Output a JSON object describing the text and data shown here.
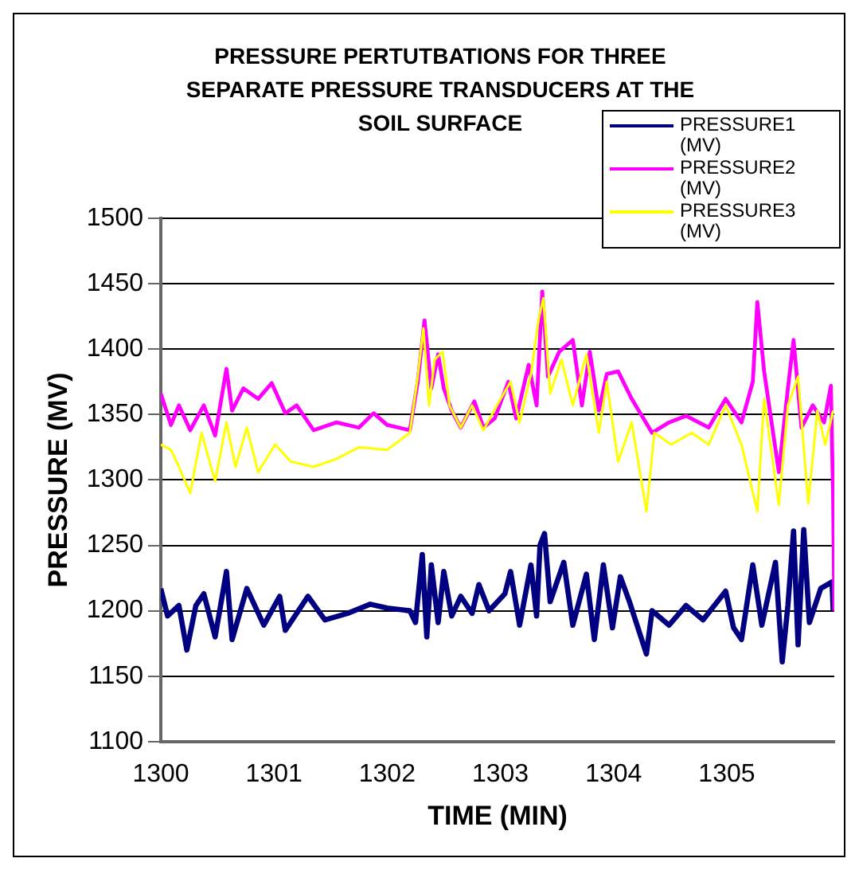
{
  "chart_data": {
    "type": "line",
    "title": "PRESSURE PERTUTBATIONS FOR THREE SEPARATE PRESSURE TRANSDUCERS AT THE SOIL SURFACE",
    "xlabel": "TIME (MIN)",
    "ylabel": "PRESSURE (MV)",
    "xlim": [
      1300,
      1305.95
    ],
    "xticks": [
      1300,
      1301,
      1302,
      1303,
      1304,
      1305
    ],
    "ylim": [
      1100,
      1500
    ],
    "yticks": [
      1100,
      1150,
      1200,
      1250,
      1300,
      1350,
      1400,
      1450,
      1500
    ],
    "grid": "y",
    "legend": "top right",
    "series": [
      {
        "name": "PRESSURE1 (MV)",
        "color": "#000080",
        "x": [
          1300.0,
          1300.06,
          1300.16,
          1300.23,
          1300.31,
          1300.38,
          1300.48,
          1300.58,
          1300.63,
          1300.76,
          1300.91,
          1301.05,
          1301.1,
          1301.3,
          1301.45,
          1301.65,
          1301.85,
          1302.0,
          1302.2,
          1302.25,
          1302.31,
          1302.35,
          1302.39,
          1302.45,
          1302.5,
          1302.57,
          1302.65,
          1302.75,
          1302.81,
          1302.9,
          1303.04,
          1303.09,
          1303.17,
          1303.27,
          1303.32,
          1303.35,
          1303.39,
          1303.44,
          1303.56,
          1303.64,
          1303.76,
          1303.83,
          1303.91,
          1303.99,
          1304.06,
          1304.14,
          1304.29,
          1304.34,
          1304.49,
          1304.64,
          1304.79,
          1304.99,
          1305.06,
          1305.13,
          1305.23,
          1305.31,
          1305.43,
          1305.49,
          1305.54,
          1305.59,
          1305.63,
          1305.68,
          1305.73,
          1305.83,
          1305.93,
          1305.94
        ],
        "values": [
          1217,
          1196,
          1204,
          1170,
          1204,
          1213,
          1180,
          1230,
          1178,
          1217,
          1189,
          1211,
          1185,
          1211,
          1193,
          1198,
          1205,
          1202,
          1200,
          1191,
          1243,
          1180,
          1235,
          1191,
          1230,
          1196,
          1211,
          1198,
          1220,
          1200,
          1213,
          1230,
          1189,
          1235,
          1196,
          1250,
          1259,
          1207,
          1237,
          1189,
          1228,
          1178,
          1235,
          1187,
          1226,
          1207,
          1167,
          1200,
          1189,
          1204,
          1193,
          1215,
          1187,
          1178,
          1235,
          1189,
          1237,
          1161,
          1204,
          1261,
          1174,
          1262,
          1191,
          1217,
          1222,
          1200
        ]
      },
      {
        "name": "PRESSURE2 (MV)",
        "color": "#ff00ff",
        "x": [
          1300.0,
          1300.09,
          1300.16,
          1300.26,
          1300.38,
          1300.48,
          1300.58,
          1300.63,
          1300.73,
          1300.86,
          1300.98,
          1301.1,
          1301.2,
          1301.35,
          1301.55,
          1301.75,
          1301.88,
          1302.0,
          1302.2,
          1302.27,
          1302.33,
          1302.39,
          1302.45,
          1302.5,
          1302.57,
          1302.65,
          1302.77,
          1302.85,
          1302.95,
          1303.07,
          1303.14,
          1303.25,
          1303.32,
          1303.37,
          1303.42,
          1303.52,
          1303.64,
          1303.72,
          1303.79,
          1303.87,
          1303.94,
          1304.04,
          1304.16,
          1304.34,
          1304.49,
          1304.64,
          1304.84,
          1304.99,
          1305.13,
          1305.23,
          1305.27,
          1305.33,
          1305.46,
          1305.54,
          1305.59,
          1305.66,
          1305.76,
          1305.86,
          1305.92,
          1305.94,
          1305.95
        ],
        "values": [
          1366,
          1342,
          1357,
          1338,
          1357,
          1334,
          1385,
          1353,
          1370,
          1362,
          1374,
          1351,
          1357,
          1338,
          1344,
          1340,
          1351,
          1342,
          1338,
          1375,
          1422,
          1370,
          1396,
          1370,
          1353,
          1340,
          1360,
          1340,
          1347,
          1375,
          1347,
          1388,
          1357,
          1444,
          1379,
          1398,
          1407,
          1357,
          1398,
          1353,
          1381,
          1383,
          1362,
          1336,
          1344,
          1349,
          1340,
          1362,
          1344,
          1375,
          1436,
          1383,
          1306,
          1370,
          1407,
          1340,
          1357,
          1344,
          1372,
          1284,
          1200
        ]
      },
      {
        "name": "PRESSURE3 (MV)",
        "color": "#ffff00",
        "x": [
          1300.0,
          1300.09,
          1300.16,
          1300.26,
          1300.36,
          1300.48,
          1300.58,
          1300.66,
          1300.76,
          1300.86,
          1301.01,
          1301.15,
          1301.35,
          1301.55,
          1301.75,
          1302.0,
          1302.2,
          1302.27,
          1302.32,
          1302.37,
          1302.42,
          1302.49,
          1302.55,
          1302.65,
          1302.75,
          1302.85,
          1302.97,
          1303.09,
          1303.17,
          1303.27,
          1303.34,
          1303.38,
          1303.44,
          1303.54,
          1303.64,
          1303.76,
          1303.87,
          1303.94,
          1304.04,
          1304.16,
          1304.29,
          1304.36,
          1304.51,
          1304.69,
          1304.84,
          1304.99,
          1305.13,
          1305.27,
          1305.33,
          1305.46,
          1305.54,
          1305.63,
          1305.72,
          1305.8,
          1305.87,
          1305.94
        ],
        "values": [
          1327,
          1323,
          1310,
          1290,
          1336,
          1299,
          1344,
          1310,
          1340,
          1306,
          1327,
          1314,
          1310,
          1316,
          1325,
          1323,
          1336,
          1379,
          1416,
          1357,
          1392,
          1398,
          1357,
          1340,
          1357,
          1338,
          1357,
          1375,
          1344,
          1381,
          1424,
          1439,
          1366,
          1392,
          1357,
          1396,
          1336,
          1375,
          1314,
          1344,
          1276,
          1336,
          1327,
          1336,
          1327,
          1357,
          1327,
          1276,
          1362,
          1281,
          1357,
          1379,
          1282,
          1353,
          1327,
          1353
        ]
      }
    ]
  }
}
